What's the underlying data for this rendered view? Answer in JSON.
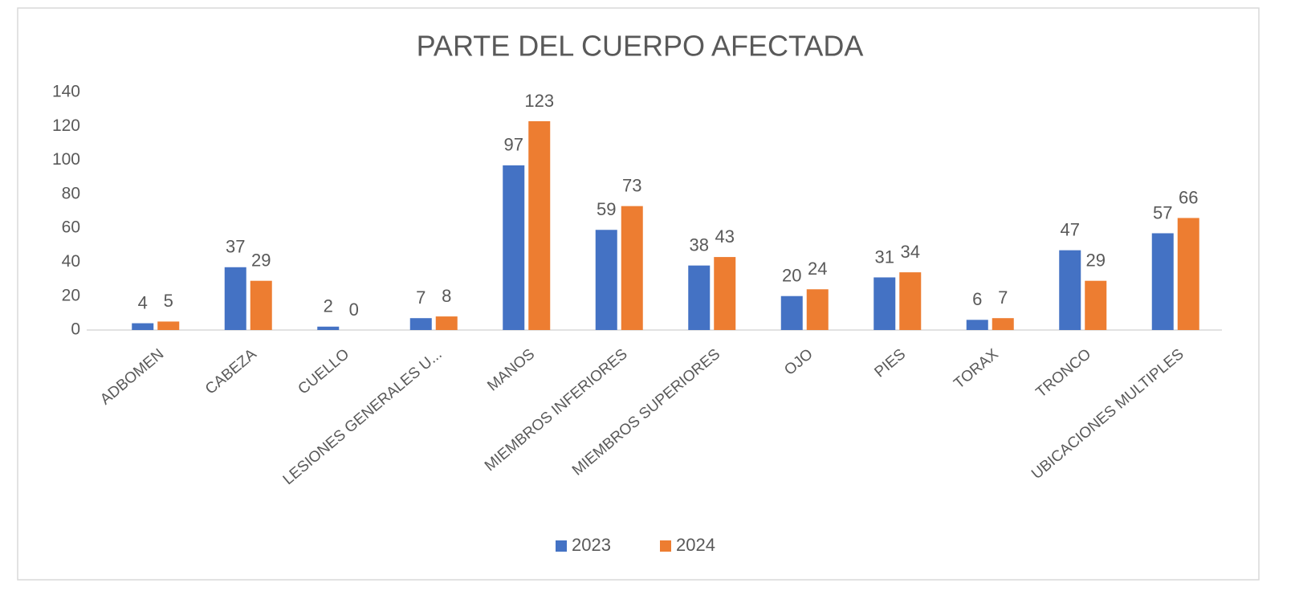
{
  "chart_data": {
    "type": "bar",
    "title": "PARTE DEL CUERPO AFECTADA",
    "categories": [
      "ADBOMEN",
      "CABEZA",
      "CUELLO",
      "LESIONES GENERALES U...",
      "MANOS",
      "MIEMBROS INFERIORES",
      "MIEMBROS SUPERIORES",
      "OJO",
      "PIES",
      "TORAX",
      "TRONCO",
      "UBICACIONES MULTIPLES"
    ],
    "series": [
      {
        "name": "2023",
        "color": "#4472c4",
        "values": [
          4,
          37,
          2,
          7,
          97,
          59,
          38,
          20,
          31,
          6,
          47,
          57
        ]
      },
      {
        "name": "2024",
        "color": "#ed7d31",
        "values": [
          5,
          29,
          0,
          8,
          123,
          73,
          43,
          24,
          34,
          7,
          29,
          66
        ]
      }
    ],
    "ylim": [
      0,
      140
    ],
    "yticks": [
      0,
      20,
      40,
      60,
      80,
      100,
      120,
      140
    ],
    "grid": false,
    "legend": "bottom"
  }
}
